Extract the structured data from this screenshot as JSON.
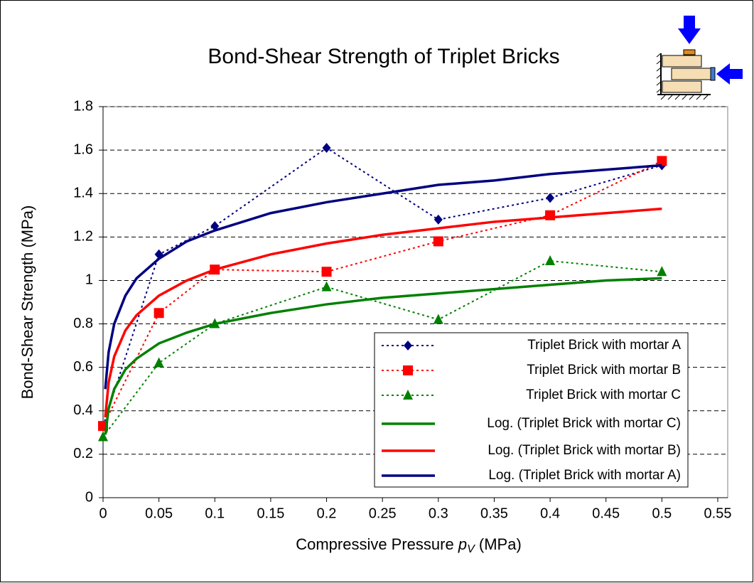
{
  "chart_data": {
    "type": "line",
    "title": "Bond-Shear Strength of Triplet Bricks",
    "y_label": "Bond-Shear Strength (MPa)",
    "x_label_parts": [
      "Compressive Pressure",
      "p",
      "V",
      "(MPa)"
    ],
    "xlim": [
      0,
      0.55
    ],
    "xticks": [
      0,
      0.05,
      0.1,
      0.15,
      0.2,
      0.25,
      0.3,
      0.35,
      0.4,
      0.45,
      0.5,
      0.55
    ],
    "ylim": [
      0,
      1.8
    ],
    "yticks": [
      0,
      0.2,
      0.4,
      0.6,
      0.8,
      1,
      1.2,
      1.4,
      1.6,
      1.8
    ],
    "grid": true,
    "series": [
      {
        "name": "Triplet Brick with mortar A",
        "color": "#000080",
        "style": "dotted",
        "marker": "diamond",
        "x": [
          0,
          0.05,
          0.1,
          0.2,
          0.3,
          0.4,
          0.5
        ],
        "values": [
          0.33,
          1.12,
          1.25,
          1.61,
          1.28,
          1.38,
          1.53
        ]
      },
      {
        "name": "Triplet Brick with mortar B",
        "color": "#ff0000",
        "style": "dotted",
        "marker": "square",
        "x": [
          0,
          0.05,
          0.1,
          0.2,
          0.3,
          0.4,
          0.5
        ],
        "values": [
          0.33,
          0.85,
          1.05,
          1.04,
          1.18,
          1.3,
          1.55
        ]
      },
      {
        "name": "Triplet Brick with mortar C",
        "color": "#008000",
        "style": "dotted",
        "marker": "triangle",
        "x": [
          0,
          0.05,
          0.1,
          0.2,
          0.3,
          0.4,
          0.5
        ],
        "values": [
          0.28,
          0.62,
          0.8,
          0.97,
          0.82,
          1.09,
          1.04
        ]
      },
      {
        "name": "Log. (Triplet Brick with mortar C)",
        "color": "#008000",
        "style": "solid",
        "x": [
          0.002,
          0.005,
          0.01,
          0.02,
          0.03,
          0.05,
          0.075,
          0.1,
          0.15,
          0.2,
          0.25,
          0.3,
          0.35,
          0.4,
          0.45,
          0.5
        ],
        "values": [
          0.29,
          0.41,
          0.5,
          0.59,
          0.64,
          0.71,
          0.76,
          0.8,
          0.85,
          0.89,
          0.92,
          0.94,
          0.96,
          0.98,
          1.0,
          1.01
        ]
      },
      {
        "name": "Log. (Triplet Brick with mortar B)",
        "color": "#ff0000",
        "style": "solid",
        "x": [
          0.002,
          0.005,
          0.01,
          0.02,
          0.03,
          0.05,
          0.075,
          0.1,
          0.15,
          0.2,
          0.25,
          0.3,
          0.35,
          0.4,
          0.45,
          0.5
        ],
        "values": [
          0.37,
          0.53,
          0.65,
          0.77,
          0.84,
          0.93,
          1.0,
          1.05,
          1.12,
          1.17,
          1.21,
          1.24,
          1.27,
          1.29,
          1.31,
          1.33
        ]
      },
      {
        "name": "Log. (Triplet Brick with mortar A)",
        "color": "#000080",
        "style": "solid",
        "x": [
          0.002,
          0.005,
          0.01,
          0.02,
          0.03,
          0.05,
          0.075,
          0.1,
          0.15,
          0.2,
          0.25,
          0.3,
          0.35,
          0.4,
          0.45,
          0.5
        ],
        "values": [
          0.5,
          0.67,
          0.8,
          0.93,
          1.01,
          1.1,
          1.18,
          1.23,
          1.31,
          1.36,
          1.4,
          1.44,
          1.46,
          1.49,
          1.51,
          1.53
        ]
      }
    ]
  }
}
